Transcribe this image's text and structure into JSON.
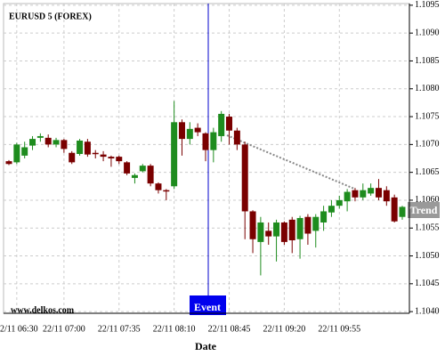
{
  "chart_data": {
    "type": "candlestick",
    "title": "EURUSD 5 (FOREX)",
    "watermark": "www.delkos.com",
    "x_label": "Date",
    "annotations": {
      "event": "Event",
      "trend": "Trend"
    },
    "categories": [
      null,
      "22/11 06:30",
      null,
      null,
      null,
      null,
      null,
      "22/11 07:00",
      null,
      null,
      null,
      null,
      null,
      null,
      "22/11 07:35",
      null,
      null,
      null,
      null,
      null,
      null,
      "22/11 08:10",
      null,
      null,
      null,
      null,
      null,
      null,
      "22/11 08:45",
      null,
      null,
      null,
      null,
      null,
      null,
      "22/11 09:20",
      null,
      null,
      null,
      null,
      null,
      null,
      "22/11 09:55",
      null,
      null,
      null,
      null,
      null,
      null,
      null,
      null
    ],
    "open": [
      1.1067,
      1.10668,
      1.1068,
      1.10698,
      1.10712,
      1.10712,
      1.107,
      1.10708,
      1.10685,
      1.10683,
      1.10705,
      1.10685,
      1.10682,
      1.10678,
      1.10678,
      1.10668,
      1.1064,
      1.10652,
      1.10662,
      1.1063,
      1.10618,
      1.10625,
      1.1074,
      1.1071,
      1.1073,
      1.1072,
      1.1069,
      1.10715,
      1.1075,
      1.10725,
      1.107,
      1.1058,
      1.10525,
      1.10545,
      1.10535,
      1.1056,
      1.10565,
      1.1053,
      1.1057,
      1.10545,
      1.1056,
      1.10578,
      1.1059,
      1.10598,
      1.10618,
      1.10605,
      1.10612,
      1.10622,
      1.10618,
      1.10605,
      1.1057
    ],
    "high": [
      1.10672,
      1.10703,
      1.10705,
      1.10715,
      1.1072,
      1.10718,
      1.10712,
      1.1071,
      1.10688,
      1.1071,
      1.1071,
      1.1069,
      1.10688,
      1.1068,
      1.1068,
      1.1067,
      1.10648,
      1.10665,
      1.10665,
      1.10632,
      1.1062,
      1.10778,
      1.10745,
      1.1074,
      1.10738,
      1.10722,
      1.1073,
      1.1076,
      1.10755,
      1.1073,
      1.10705,
      1.10582,
      1.1057,
      1.1056,
      1.10565,
      1.10562,
      1.1057,
      1.10572,
      1.10575,
      1.10575,
      1.1059,
      1.106,
      1.10608,
      1.1062,
      1.10622,
      1.1063,
      1.1063,
      1.10638,
      1.10625,
      1.1061,
      1.1059
    ],
    "low": [
      1.10663,
      1.10665,
      1.10675,
      1.1069,
      1.10705,
      1.10695,
      1.10695,
      1.10685,
      1.10665,
      1.1068,
      1.10678,
      1.10675,
      1.1067,
      1.1066,
      1.10665,
      1.10645,
      1.1063,
      1.1065,
      1.10625,
      1.10612,
      1.106,
      1.1062,
      1.1068,
      1.107,
      1.10715,
      1.1067,
      1.10668,
      1.10705,
      1.107,
      1.1069,
      1.1053,
      1.10505,
      1.10465,
      1.1052,
      1.1049,
      1.1052,
      1.10505,
      1.10495,
      1.1052,
      1.10515,
      1.10545,
      1.1057,
      1.10585,
      1.1058,
      1.10598,
      1.106,
      1.10608,
      1.106,
      1.1059,
      1.1056,
      1.10565
    ],
    "close": [
      1.10665,
      1.107,
      1.10695,
      1.1071,
      1.10715,
      1.107,
      1.10708,
      1.10692,
      1.10668,
      1.10707,
      1.10682,
      1.10683,
      1.10678,
      1.10675,
      1.1067,
      1.10648,
      1.10645,
      1.10662,
      1.1063,
      1.10618,
      1.10616,
      1.1074,
      1.1071,
      1.10728,
      1.10722,
      1.1069,
      1.10722,
      1.10755,
      1.10725,
      1.107,
      1.1058,
      1.1053,
      1.1056,
      1.10535,
      1.1056,
      1.10525,
      1.10528,
      1.10568,
      1.1054,
      1.1057,
      1.1058,
      1.1059,
      1.106,
      1.10615,
      1.10605,
      1.10618,
      1.10622,
      1.10605,
      1.10598,
      1.10562,
      1.10588
    ],
    "up_color": "#1e8c1e",
    "down_color": "#7a0000",
    "ylim": [
      1.10397,
      1.10953
    ],
    "yticks": [
      {
        "value": 1.104,
        "label": "1.1040"
      },
      1.1045,
      {
        "value": 1.105,
        "label": "1.1050"
      },
      1.1055,
      {
        "value": 1.106,
        "label": "1.1060"
      },
      1.1065,
      {
        "value": 1.107,
        "label": "1.1070"
      },
      1.1075,
      {
        "value": 1.108,
        "label": "1.1080"
      },
      1.1085,
      {
        "value": 1.109,
        "label": "1.1090"
      },
      1.1095
    ],
    "grid": true
  }
}
